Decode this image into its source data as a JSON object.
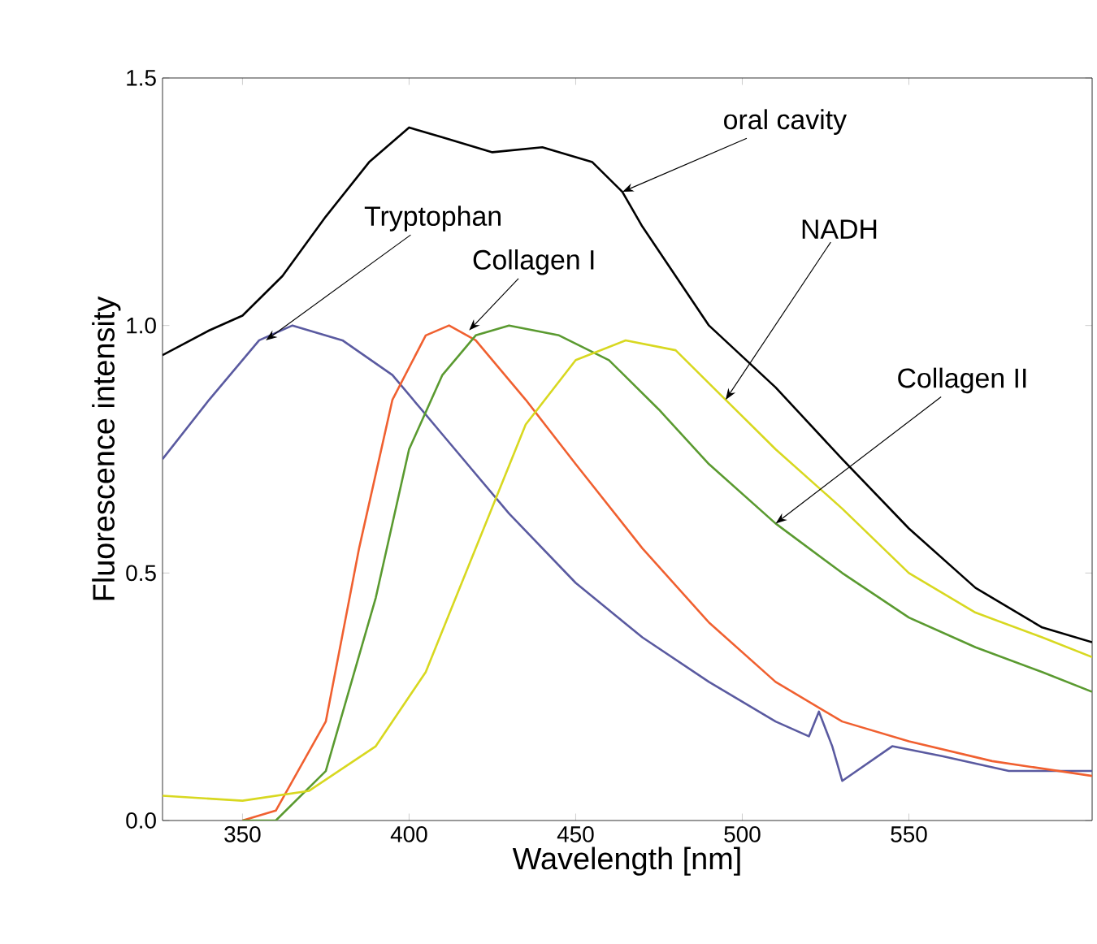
{
  "chart_data": {
    "type": "line",
    "xlabel": "Wavelength [nm]",
    "ylabel": "Fluorescence intensity",
    "xlim": [
      326,
      605
    ],
    "ylim": [
      0,
      1.5
    ],
    "xticks": [
      350,
      400,
      450,
      500,
      550
    ],
    "yticks": [
      {
        "value": 0,
        "label": "0.0"
      },
      {
        "value": 0.5,
        "label": "0.5"
      },
      {
        "value": 1,
        "label": "1.0"
      },
      {
        "value": 1.5,
        "label": "1.5"
      }
    ],
    "grid": false,
    "marker": "none",
    "line_style": "solid",
    "series": [
      {
        "color": "#000000",
        "x": [
          326,
          340,
          350,
          362,
          375,
          388,
          400,
          410,
          425,
          440,
          455,
          464,
          470,
          490,
          510,
          530,
          550,
          570,
          590,
          605
        ],
        "values": [
          0.94,
          0.99,
          1.02,
          1.1,
          1.22,
          1.33,
          1.4,
          1.38,
          1.35,
          1.36,
          1.33,
          1.27,
          1.2,
          1.0,
          0.875,
          0.73,
          0.59,
          0.47,
          0.39,
          0.36
        ]
      },
      {
        "color": "#5a5aa0",
        "x": [
          326,
          340,
          355,
          365,
          380,
          395,
          410,
          430,
          450,
          470,
          490,
          510,
          520,
          523,
          527,
          530,
          545,
          560,
          580,
          605
        ],
        "values": [
          0.73,
          0.85,
          0.97,
          1.0,
          0.97,
          0.9,
          0.78,
          0.62,
          0.48,
          0.37,
          0.28,
          0.2,
          0.17,
          0.22,
          0.15,
          0.08,
          0.15,
          0.13,
          0.1,
          0.1
        ]
      },
      {
        "color": "#f06030",
        "x": [
          350,
          360,
          375,
          385,
          395,
          405,
          412,
          420,
          435,
          450,
          470,
          490,
          510,
          530,
          550,
          575,
          605
        ],
        "values": [
          0.0,
          0.02,
          0.2,
          0.55,
          0.85,
          0.98,
          1.0,
          0.97,
          0.85,
          0.72,
          0.55,
          0.4,
          0.28,
          0.2,
          0.16,
          0.12,
          0.09
        ]
      },
      {
        "color": "#5a9a30",
        "x": [
          350,
          360,
          375,
          390,
          400,
          410,
          420,
          430,
          445,
          460,
          475,
          490,
          510,
          530,
          550,
          570,
          590,
          605
        ],
        "values": [
          0.0,
          0.0,
          0.1,
          0.45,
          0.75,
          0.9,
          0.98,
          1.0,
          0.98,
          0.93,
          0.83,
          0.72,
          0.6,
          0.5,
          0.41,
          0.35,
          0.3,
          0.26
        ]
      },
      {
        "color": "#d8d820",
        "x": [
          326,
          350,
          370,
          390,
          405,
          420,
          435,
          450,
          465,
          480,
          495,
          510,
          530,
          550,
          570,
          590,
          605
        ],
        "values": [
          0.05,
          0.04,
          0.06,
          0.15,
          0.3,
          0.55,
          0.8,
          0.93,
          0.97,
          0.95,
          0.85,
          0.75,
          0.63,
          0.5,
          0.42,
          0.37,
          0.33
        ]
      }
    ],
    "annotations": [
      {
        "text": "oral cavity",
        "x": 464,
        "y": 1.27
      },
      {
        "text": "Tryptophan",
        "x": 357,
        "y": 0.97
      },
      {
        "text": "Collagen I",
        "x": 418,
        "y": 0.99
      },
      {
        "text": "NADH",
        "x": 495,
        "y": 0.85
      },
      {
        "text": "Collagen II",
        "x": 510,
        "y": 0.6
      }
    ]
  }
}
